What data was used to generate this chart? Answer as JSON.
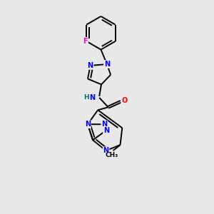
{
  "background_color": "#e8e8e8",
  "bond_color": "#000000",
  "atom_colors": {
    "N": "#0000ff",
    "O": "#ff0000",
    "F": "#ff00cc",
    "C": "#000000",
    "H": "#007070"
  },
  "lw": 1.4,
  "fs": 7.0,
  "figsize": [
    3.0,
    3.0
  ],
  "dpi": 100,
  "xlim": [
    0,
    10
  ],
  "ylim": [
    0,
    10.5
  ]
}
